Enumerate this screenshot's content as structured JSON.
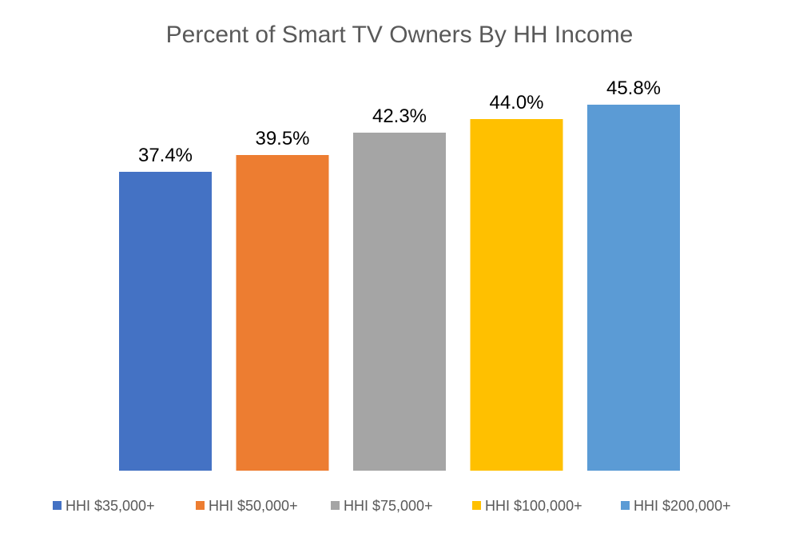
{
  "chart_data": {
    "type": "bar",
    "title": "Percent of Smart TV Owners By HH Income",
    "categories": [
      "HHI $35,000+",
      "HHI $50,000+",
      "HHI $75,000+",
      "HHI $100,000+",
      "HHI $200,000+"
    ],
    "values": [
      37.4,
      39.5,
      42.3,
      44.0,
      45.8
    ],
    "data_labels": [
      "37.4%",
      "39.5%",
      "42.3%",
      "44.0%",
      "45.8%"
    ],
    "colors": [
      "#4472C4",
      "#ED7D31",
      "#A5A5A5",
      "#FFC000",
      "#5B9BD5"
    ],
    "xlabel": "",
    "ylabel": "",
    "ylim": [
      0,
      50
    ],
    "grid": false,
    "axes_visible": false,
    "legend_position": "bottom"
  }
}
